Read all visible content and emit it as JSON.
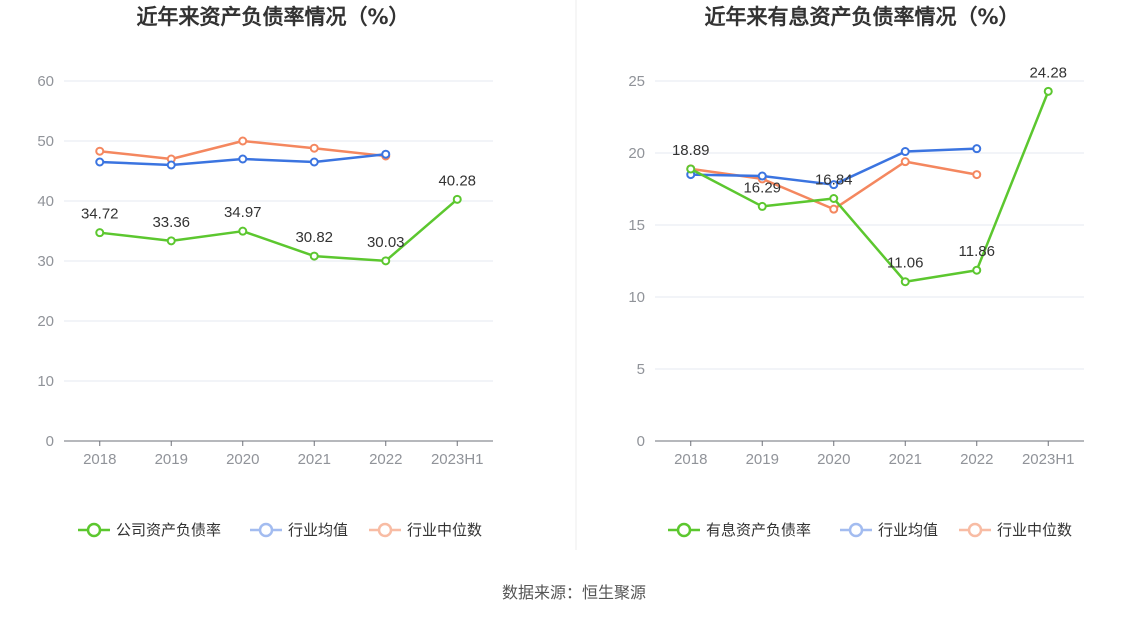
{
  "source_text": "数据来源：恒生聚源",
  "chart_data": [
    {
      "type": "line",
      "title": "近年来资产负债率情况（%）",
      "categories": [
        "2018",
        "2019",
        "2020",
        "2021",
        "2022",
        "2023H1"
      ],
      "yticks": [
        "0",
        "10",
        "20",
        "30",
        "40",
        "50",
        "60"
      ],
      "ylim": [
        0,
        60
      ],
      "grid": true,
      "legend_position": "bottom",
      "series": [
        {
          "name": "公司资产负债率",
          "color": "#5cc72f",
          "values": [
            34.72,
            33.36,
            34.97,
            30.82,
            30.03,
            40.28
          ],
          "labels": [
            "34.72",
            "33.36",
            "34.97",
            "30.82",
            "30.03",
            "40.28"
          ]
        },
        {
          "name": "行业均值",
          "color": "#3b74e0",
          "values": [
            46.5,
            46.0,
            47.0,
            46.5,
            47.8,
            null
          ],
          "labels": []
        },
        {
          "name": "行业中位数",
          "color": "#f4875f",
          "values": [
            48.3,
            47.0,
            50.0,
            48.8,
            47.5,
            null
          ],
          "labels": []
        }
      ]
    },
    {
      "type": "line",
      "title": "近年来有息资产负债率情况（%）",
      "categories": [
        "2018",
        "2019",
        "2020",
        "2021",
        "2022",
        "2023H1"
      ],
      "yticks": [
        "0",
        "5",
        "10",
        "15",
        "20",
        "25"
      ],
      "ylim": [
        0,
        25
      ],
      "grid": true,
      "legend_position": "bottom",
      "series": [
        {
          "name": "有息资产负债率",
          "color": "#5cc72f",
          "values": [
            18.89,
            16.29,
            16.84,
            11.06,
            11.86,
            24.28
          ],
          "labels": [
            "18.89",
            "16.29",
            "16.84",
            "11.06",
            "11.86",
            "24.28"
          ]
        },
        {
          "name": "行业均值",
          "color": "#3b74e0",
          "values": [
            18.5,
            18.4,
            17.8,
            20.1,
            20.3,
            null
          ],
          "labels": []
        },
        {
          "name": "行业中位数",
          "color": "#f4875f",
          "values": [
            18.9,
            18.2,
            16.1,
            19.4,
            18.5,
            null
          ],
          "labels": []
        }
      ]
    }
  ]
}
